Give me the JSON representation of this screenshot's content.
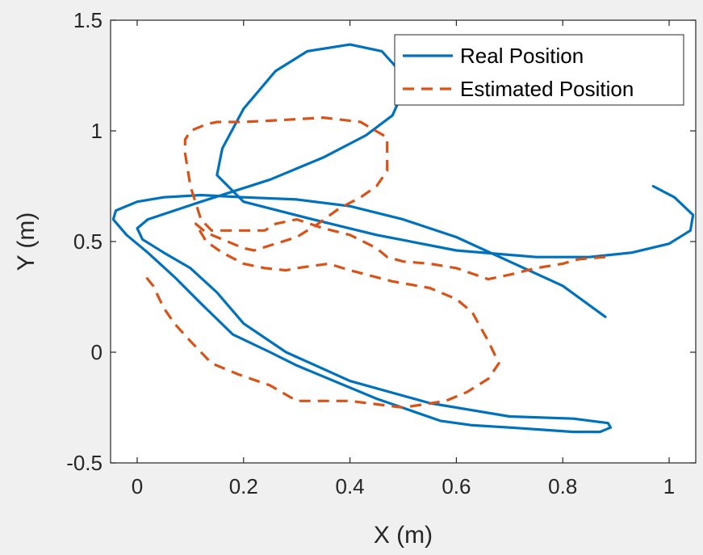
{
  "chart_data": {
    "type": "line",
    "title": "",
    "xlabel": "X (m)",
    "ylabel": "Y (m)",
    "xlim": [
      -0.05,
      1.05
    ],
    "ylim": [
      -0.5,
      1.5
    ],
    "xticks": [
      0,
      0.2,
      0.4,
      0.6,
      0.8,
      1
    ],
    "yticks": [
      -0.5,
      0,
      0.5,
      1,
      1.5
    ],
    "xtick_labels": [
      "0",
      "0.2",
      "0.4",
      "0.6",
      "0.8",
      "1"
    ],
    "ytick_labels": [
      "-0.5",
      "0",
      "0.5",
      "1",
      "1.5"
    ],
    "grid": false,
    "legend_position": "top-right",
    "series": [
      {
        "name": "Real Position",
        "color": "#0072BD",
        "style": "solid",
        "x": [
          0.97,
          1.01,
          1.045,
          1.04,
          1.0,
          0.93,
          0.85,
          0.75,
          0.6,
          0.45,
          0.33,
          0.2,
          0.15,
          0.16,
          0.2,
          0.26,
          0.32,
          0.4,
          0.46,
          0.49,
          0.5,
          0.48,
          0.43,
          0.35,
          0.25,
          0.12,
          0.02,
          0.0,
          0.01,
          0.05,
          0.1,
          0.15,
          0.2,
          0.28,
          0.4,
          0.55,
          0.7,
          0.82,
          0.885,
          0.89,
          0.87,
          0.82,
          0.76,
          0.7,
          0.63,
          0.57,
          0.45,
          0.3,
          0.25,
          0.18,
          0.12,
          0.07,
          0.02,
          -0.02,
          -0.045,
          -0.04,
          0.0,
          0.05,
          0.12,
          0.2,
          0.3,
          0.4,
          0.5,
          0.6,
          0.7,
          0.8,
          0.88
        ],
        "y": [
          0.75,
          0.7,
          0.62,
          0.55,
          0.49,
          0.45,
          0.43,
          0.43,
          0.46,
          0.53,
          0.6,
          0.68,
          0.8,
          0.92,
          1.1,
          1.27,
          1.36,
          1.39,
          1.36,
          1.28,
          1.18,
          1.07,
          0.98,
          0.88,
          0.78,
          0.68,
          0.6,
          0.56,
          0.51,
          0.45,
          0.38,
          0.27,
          0.13,
          0.0,
          -0.13,
          -0.23,
          -0.29,
          -0.3,
          -0.32,
          -0.34,
          -0.36,
          -0.36,
          -0.35,
          -0.34,
          -0.33,
          -0.31,
          -0.21,
          -0.06,
          0.0,
          0.08,
          0.22,
          0.34,
          0.45,
          0.53,
          0.6,
          0.64,
          0.68,
          0.7,
          0.71,
          0.7,
          0.69,
          0.66,
          0.6,
          0.52,
          0.41,
          0.3,
          0.16
        ],
        "x_order_note": ""
      },
      {
        "name": "Estimated Position",
        "color": "#D95319",
        "style": "dashed",
        "x": [
          0.88,
          0.83,
          0.8,
          0.75,
          0.7,
          0.66,
          0.6,
          0.55,
          0.5,
          0.47,
          0.45,
          0.4,
          0.35,
          0.3,
          0.26,
          0.24,
          0.2,
          0.17,
          0.14,
          0.12,
          0.1,
          0.09,
          0.09,
          0.1,
          0.13,
          0.15,
          0.2,
          0.28,
          0.35,
          0.42,
          0.47,
          0.47,
          0.45,
          0.42,
          0.38,
          0.34,
          0.3,
          0.26,
          0.22,
          0.2,
          0.17,
          0.13,
          0.11,
          0.13,
          0.16,
          0.2,
          0.24,
          0.28,
          0.3,
          0.36,
          0.4,
          0.48,
          0.55,
          0.6,
          0.63,
          0.66,
          0.68,
          0.66,
          0.62,
          0.58,
          0.5,
          0.4,
          0.3,
          0.25,
          0.19,
          0.14,
          0.1,
          0.07,
          0.05,
          0.04,
          0.03,
          0.01
        ],
        "y": [
          0.43,
          0.42,
          0.4,
          0.38,
          0.35,
          0.33,
          0.38,
          0.4,
          0.41,
          0.43,
          0.47,
          0.53,
          0.56,
          0.6,
          0.58,
          0.55,
          0.55,
          0.55,
          0.55,
          0.6,
          0.75,
          0.9,
          0.96,
          1.0,
          1.03,
          1.04,
          1.04,
          1.05,
          1.06,
          1.04,
          0.97,
          0.82,
          0.75,
          0.7,
          0.65,
          0.58,
          0.52,
          0.49,
          0.46,
          0.47,
          0.5,
          0.54,
          0.58,
          0.5,
          0.45,
          0.4,
          0.38,
          0.37,
          0.38,
          0.4,
          0.37,
          0.32,
          0.29,
          0.24,
          0.18,
          0.05,
          -0.05,
          -0.12,
          -0.18,
          -0.22,
          -0.25,
          -0.22,
          -0.22,
          -0.15,
          -0.1,
          -0.05,
          0.05,
          0.13,
          0.2,
          0.25,
          0.3,
          0.36
        ]
      }
    ]
  }
}
